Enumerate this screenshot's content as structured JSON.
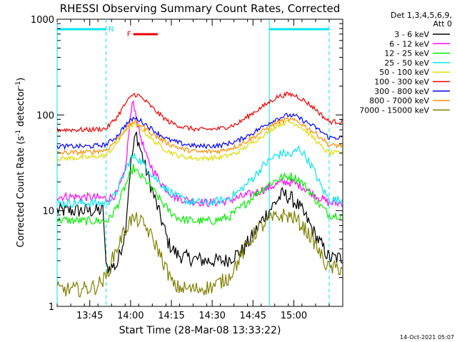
{
  "chart_data": {
    "type": "line",
    "title": "RHESSI Observing Summary Count Rates, Corrected",
    "xlabel": "Start Time (28-Mar-08 13:33:22)",
    "ylabel_main": "Corrected Count Rate (s",
    "ylabel_sup1": "-1",
    "ylabel_mid": " detector",
    "ylabel_sup2": "-1",
    "ylabel_end": ")",
    "timestamp": "14-Oct-2021 05:07",
    "yscale": "log",
    "ylim": [
      1,
      1000
    ],
    "xlim_min": [
      0,
      105
    ],
    "y_ticks": [
      {
        "v": 1,
        "label": "1"
      },
      {
        "v": 10,
        "label": "10"
      },
      {
        "v": 100,
        "label": "100"
      },
      {
        "v": 1000,
        "label": "1000"
      }
    ],
    "x_ticks": [
      {
        "m": 12,
        "label": "13:45"
      },
      {
        "m": 27,
        "label": "14:00"
      },
      {
        "m": 42,
        "label": "14:15"
      },
      {
        "m": 57,
        "label": "14:30"
      },
      {
        "m": 72,
        "label": "14:45"
      },
      {
        "m": 87,
        "label": "15:00"
      }
    ],
    "legend_header": [
      "Det 1,3,4,5,6,9,",
      "Att 0"
    ],
    "flags": [
      {
        "label": "N",
        "color": "#00e5ee",
        "segments": [
          [
            0,
            18
          ],
          [
            78,
            100
          ]
        ]
      },
      {
        "label": "F",
        "color": "#ee0000",
        "segments": [
          [
            28,
            37
          ]
        ]
      }
    ],
    "night_lines": [
      {
        "m": 0,
        "style": "solid"
      },
      {
        "m": 18,
        "style": "dashed"
      },
      {
        "m": 78,
        "style": "solid"
      },
      {
        "m": 100,
        "style": "dashed"
      }
    ],
    "series": [
      {
        "name": "3 - 6 keV",
        "color": "#000000",
        "points": [
          [
            0,
            10
          ],
          [
            12,
            10
          ],
          [
            17,
            10
          ],
          [
            18,
            2.5
          ],
          [
            22,
            2.7
          ],
          [
            25,
            6
          ],
          [
            27,
            30
          ],
          [
            29,
            65
          ],
          [
            31,
            40
          ],
          [
            33,
            25
          ],
          [
            36,
            13
          ],
          [
            39,
            7
          ],
          [
            41,
            4.5
          ],
          [
            44,
            3.5
          ],
          [
            48,
            3.2
          ],
          [
            55,
            3
          ],
          [
            62,
            3
          ],
          [
            68,
            3.8
          ],
          [
            72,
            5.5
          ],
          [
            76,
            8.5
          ],
          [
            80,
            12
          ],
          [
            83,
            15
          ],
          [
            86,
            13.5
          ],
          [
            89,
            11
          ],
          [
            92,
            8
          ],
          [
            95,
            5.5
          ],
          [
            98,
            4
          ],
          [
            100,
            3.2
          ]
        ]
      },
      {
        "name": "6 - 12 keV",
        "color": "#ff00ff",
        "points": [
          [
            0,
            14
          ],
          [
            8,
            14
          ],
          [
            16,
            13.5
          ],
          [
            19,
            13.5
          ],
          [
            22,
            15
          ],
          [
            25,
            25
          ],
          [
            27,
            100
          ],
          [
            28,
            140
          ],
          [
            30,
            70
          ],
          [
            33,
            35
          ],
          [
            37,
            22
          ],
          [
            40,
            17
          ],
          [
            43,
            14
          ],
          [
            47,
            13
          ],
          [
            55,
            12
          ],
          [
            62,
            12.5
          ],
          [
            68,
            14
          ],
          [
            73,
            15.5
          ],
          [
            77,
            17
          ],
          [
            81,
            19
          ],
          [
            84,
            20
          ],
          [
            87,
            19.5
          ],
          [
            90,
            18
          ],
          [
            94,
            15
          ],
          [
            98,
            13
          ],
          [
            100,
            12
          ]
        ]
      },
      {
        "name": "12 - 25 keV",
        "color": "#00ee00",
        "points": [
          [
            0,
            8
          ],
          [
            10,
            7.8
          ],
          [
            17,
            7.8
          ],
          [
            19,
            8
          ],
          [
            22,
            11
          ],
          [
            25,
            18
          ],
          [
            28,
            28
          ],
          [
            30,
            24
          ],
          [
            33,
            20
          ],
          [
            37,
            14
          ],
          [
            41,
            10
          ],
          [
            45,
            8.2
          ],
          [
            50,
            7.8
          ],
          [
            57,
            7.8
          ],
          [
            63,
            8.5
          ],
          [
            68,
            11
          ],
          [
            73,
            15
          ],
          [
            78,
            19
          ],
          [
            82,
            22
          ],
          [
            86,
            23
          ],
          [
            89,
            21
          ],
          [
            92,
            17
          ],
          [
            96,
            12
          ],
          [
            100,
            9
          ]
        ]
      },
      {
        "name": "25 - 50 keV",
        "color": "#00e5ee",
        "points": [
          [
            0,
            12
          ],
          [
            10,
            12
          ],
          [
            18,
            12
          ],
          [
            21,
            14
          ],
          [
            24,
            22
          ],
          [
            27,
            35
          ],
          [
            29,
            37
          ],
          [
            32,
            30
          ],
          [
            36,
            22
          ],
          [
            40,
            17
          ],
          [
            44,
            14
          ],
          [
            48,
            12.5
          ],
          [
            55,
            12
          ],
          [
            62,
            13
          ],
          [
            67,
            16
          ],
          [
            72,
            22
          ],
          [
            76,
            30
          ],
          [
            80,
            37
          ],
          [
            83,
            40
          ],
          [
            86,
            38
          ],
          [
            89,
            45
          ],
          [
            91,
            38
          ],
          [
            94,
            28
          ],
          [
            97,
            18
          ],
          [
            100,
            13
          ]
        ]
      },
      {
        "name": "50 - 100 keV",
        "color": "#dddd00",
        "points": [
          [
            0,
            35
          ],
          [
            12,
            36
          ],
          [
            18,
            38
          ],
          [
            22,
            50
          ],
          [
            25,
            70
          ],
          [
            28,
            80
          ],
          [
            31,
            72
          ],
          [
            35,
            55
          ],
          [
            40,
            43
          ],
          [
            45,
            37
          ],
          [
            52,
            35
          ],
          [
            60,
            36
          ],
          [
            66,
            40
          ],
          [
            72,
            52
          ],
          [
            77,
            65
          ],
          [
            81,
            78
          ],
          [
            85,
            85
          ],
          [
            88,
            80
          ],
          [
            91,
            70
          ],
          [
            95,
            55
          ],
          [
            98,
            44
          ],
          [
            100,
            40
          ]
        ]
      },
      {
        "name": "100 - 300 keV",
        "color": "#ee0000",
        "points": [
          [
            0,
            70
          ],
          [
            12,
            70
          ],
          [
            18,
            72
          ],
          [
            22,
            95
          ],
          [
            25,
            130
          ],
          [
            28,
            165
          ],
          [
            30,
            160
          ],
          [
            33,
            135
          ],
          [
            37,
            105
          ],
          [
            41,
            85
          ],
          [
            46,
            75
          ],
          [
            52,
            70
          ],
          [
            60,
            72
          ],
          [
            66,
            80
          ],
          [
            72,
            105
          ],
          [
            77,
            130
          ],
          [
            81,
            155
          ],
          [
            85,
            165
          ],
          [
            88,
            158
          ],
          [
            91,
            140
          ],
          [
            95,
            115
          ],
          [
            98,
            95
          ],
          [
            100,
            85
          ]
        ]
      },
      {
        "name": "300 - 800 keV",
        "color": "#0000ff",
        "points": [
          [
            0,
            47
          ],
          [
            12,
            47
          ],
          [
            18,
            49
          ],
          [
            22,
            60
          ],
          [
            25,
            78
          ],
          [
            28,
            92
          ],
          [
            30,
            90
          ],
          [
            33,
            78
          ],
          [
            37,
            64
          ],
          [
            41,
            55
          ],
          [
            46,
            50
          ],
          [
            52,
            47
          ],
          [
            60,
            48
          ],
          [
            66,
            53
          ],
          [
            72,
            65
          ],
          [
            77,
            80
          ],
          [
            81,
            92
          ],
          [
            85,
            100
          ],
          [
            88,
            96
          ],
          [
            91,
            86
          ],
          [
            95,
            74
          ],
          [
            98,
            64
          ],
          [
            100,
            58
          ]
        ]
      },
      {
        "name": "800 - 7000 keV",
        "color": "#ff8c00",
        "points": [
          [
            0,
            40
          ],
          [
            12,
            41
          ],
          [
            18,
            43
          ],
          [
            22,
            55
          ],
          [
            25,
            70
          ],
          [
            28,
            85
          ],
          [
            30,
            82
          ],
          [
            33,
            70
          ],
          [
            37,
            58
          ],
          [
            41,
            50
          ],
          [
            46,
            44
          ],
          [
            52,
            41
          ],
          [
            60,
            42
          ],
          [
            66,
            47
          ],
          [
            72,
            58
          ],
          [
            77,
            72
          ],
          [
            81,
            84
          ],
          [
            85,
            90
          ],
          [
            88,
            86
          ],
          [
            91,
            77
          ],
          [
            95,
            64
          ],
          [
            98,
            55
          ],
          [
            100,
            48
          ]
        ]
      },
      {
        "name": "7000 - 15000 keV",
        "color": "#808000",
        "points": [
          [
            0,
            1.5
          ],
          [
            8,
            1.5
          ],
          [
            14,
            1.6
          ],
          [
            18,
            2
          ],
          [
            21,
            3.5
          ],
          [
            24,
            5.5
          ],
          [
            27,
            8
          ],
          [
            30,
            8
          ],
          [
            33,
            6.5
          ],
          [
            37,
            4
          ],
          [
            40,
            2.5
          ],
          [
            43,
            1.6
          ],
          [
            50,
            1.5
          ],
          [
            57,
            1.6
          ],
          [
            63,
            2
          ],
          [
            68,
            3.5
          ],
          [
            73,
            6
          ],
          [
            78,
            8
          ],
          [
            83,
            9
          ],
          [
            87,
            8.5
          ],
          [
            90,
            7
          ],
          [
            94,
            5
          ],
          [
            98,
            3
          ],
          [
            100,
            2.5
          ]
        ]
      }
    ]
  }
}
